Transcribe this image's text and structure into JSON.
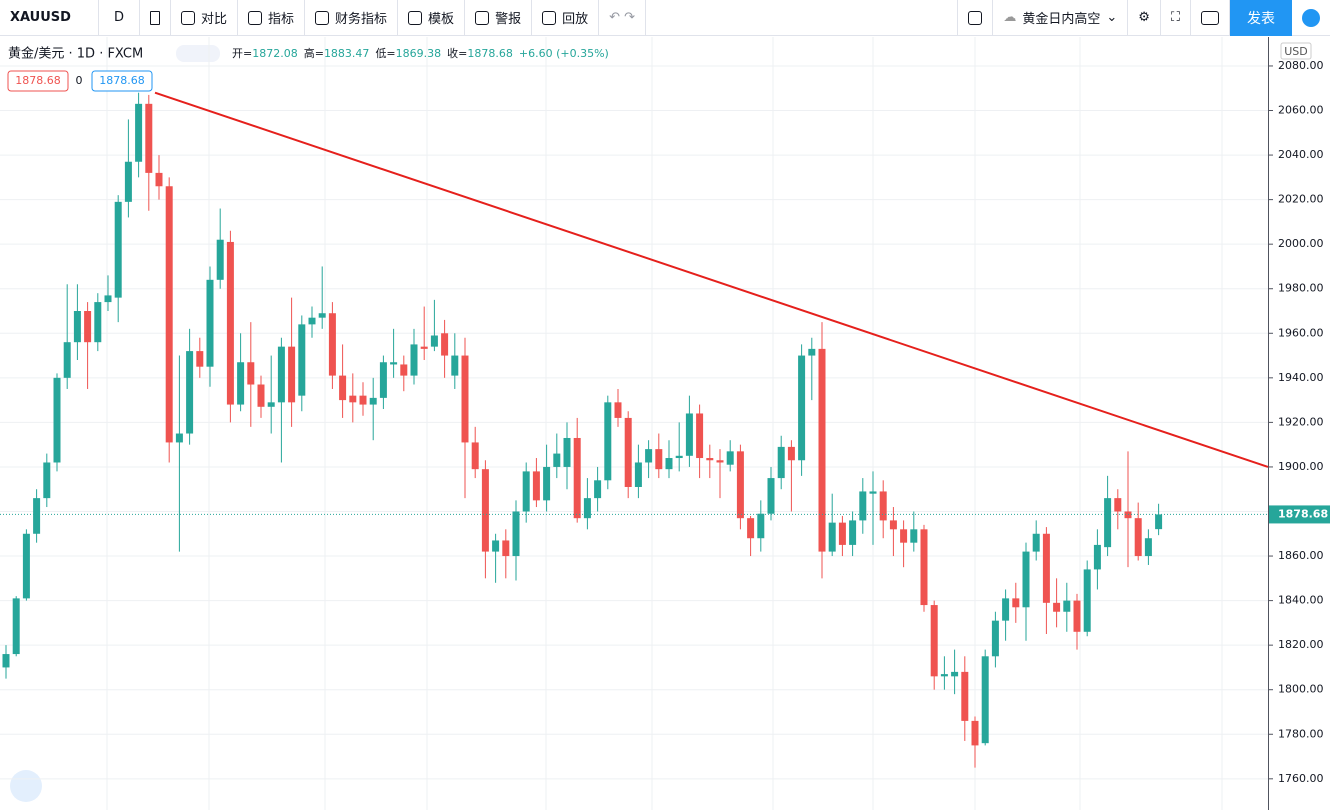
{
  "toolbar": {
    "symbol": "XAUUSD",
    "interval": "D",
    "items": [
      "对比",
      "指标",
      "财务指标",
      "模板",
      "警报",
      "回放"
    ],
    "layout_name": "黄金日内高空",
    "publish": "发表"
  },
  "chart_data": {
    "type": "candlestick",
    "legend": {
      "title": "黄金/美元 · 1D · FXCM",
      "ohlc": [
        {
          "label": "开=",
          "value": "1872.08"
        },
        {
          "label": "高=",
          "value": "1883.47"
        },
        {
          "label": "低=",
          "value": "1869.38"
        },
        {
          "label": "收=",
          "value": "1878.68"
        }
      ],
      "change": "+6.60 (+0.35%)",
      "badges": [
        "1878.68",
        "0",
        "1878.68"
      ]
    },
    "currency": "USD",
    "up_color": "#26a69a",
    "down_color": "#ef5350",
    "open": [
      1810,
      1816,
      1841,
      1870,
      1886,
      1902,
      1940,
      1956,
      1970,
      1956,
      1974,
      1976,
      2019,
      2037,
      2063,
      2032,
      2026,
      1911,
      1915,
      1952,
      1945,
      1984,
      2001,
      1928,
      1947,
      1937,
      1927,
      1929,
      1954,
      1932,
      1964,
      1967,
      1969,
      1941,
      1932,
      1932,
      1928,
      1931,
      1946,
      1946,
      1941,
      1954,
      1954,
      1960,
      1941,
      1950,
      1911,
      1899,
      1862,
      1867,
      1860,
      1880,
      1898,
      1885,
      1900,
      1900,
      1913,
      1877,
      1886,
      1894,
      1929,
      1922,
      1891,
      1902,
      1908,
      1899,
      1904,
      1905,
      1924,
      1904,
      1903,
      1901,
      1907,
      1877,
      1868,
      1879,
      1895,
      1909,
      1903,
      1950,
      1953,
      1862,
      1875,
      1865,
      1876,
      1888,
      1889,
      1876,
      1872,
      1866,
      1872,
      1838,
      1806,
      1806,
      1808,
      1786,
      1776,
      1815,
      1831,
      1841,
      1837,
      1862,
      1870,
      1839,
      1835,
      1840,
      1826,
      1854,
      1864,
      1886,
      1880,
      1877,
      1860,
      1872.08
    ],
    "high": [
      1820,
      1842,
      1872,
      1890,
      1906,
      1942,
      1982,
      1982,
      1974,
      1978,
      1986,
      2022,
      2056,
      2068,
      2067,
      2040,
      2030,
      1950,
      1962,
      1958,
      1990,
      2016,
      2006,
      1960,
      1965,
      1941,
      1950,
      1958,
      1976,
      1968,
      1972,
      1990,
      1974,
      1955,
      1942,
      1938,
      1940,
      1950,
      1962,
      1950,
      1962,
      1972,
      1975,
      1966,
      1960,
      1958,
      1918,
      1903,
      1870,
      1872,
      1885,
      1902,
      1904,
      1910,
      1915,
      1920,
      1922,
      1895,
      1900,
      1932,
      1935,
      1925,
      1910,
      1912,
      1915,
      1912,
      1920,
      1932,
      1928,
      1910,
      1908,
      1912,
      1910,
      1878,
      1885,
      1900,
      1914,
      1912,
      1955,
      1958,
      1965,
      1888,
      1878,
      1880,
      1895,
      1898,
      1894,
      1882,
      1876,
      1880,
      1874,
      1840,
      1815,
      1818,
      1815,
      1788,
      1818,
      1835,
      1845,
      1848,
      1866,
      1876,
      1873,
      1850,
      1848,
      1843,
      1858,
      1872,
      1896,
      1890,
      1907,
      1884,
      1872,
      1883.47
    ],
    "low": [
      1805,
      1815,
      1840,
      1866,
      1882,
      1898,
      1935,
      1948,
      1935,
      1952,
      1970,
      1965,
      2012,
      2030,
      2015,
      2020,
      1902,
      1862,
      1910,
      1940,
      1936,
      1980,
      1920,
      1925,
      1918,
      1922,
      1915,
      1902,
      1918,
      1925,
      1958,
      1962,
      1935,
      1922,
      1920,
      1923,
      1912,
      1926,
      1940,
      1934,
      1937,
      1948,
      1952,
      1940,
      1935,
      1886,
      1895,
      1850,
      1848,
      1850,
      1849,
      1875,
      1882,
      1880,
      1895,
      1890,
      1875,
      1872,
      1880,
      1890,
      1918,
      1886,
      1886,
      1895,
      1895,
      1895,
      1898,
      1900,
      1895,
      1895,
      1886,
      1898,
      1872,
      1860,
      1862,
      1876,
      1890,
      1880,
      1896,
      1930,
      1850,
      1860,
      1860,
      1860,
      1870,
      1865,
      1868,
      1860,
      1855,
      1862,
      1835,
      1800,
      1800,
      1798,
      1777,
      1765,
      1775,
      1810,
      1822,
      1830,
      1822,
      1858,
      1825,
      1828,
      1826,
      1818,
      1824,
      1845,
      1860,
      1872,
      1855,
      1858,
      1856,
      1869.38
    ],
    "close": [
      1816,
      1841,
      1870,
      1886,
      1902,
      1940,
      1956,
      1970,
      1956,
      1974,
      1977,
      2019,
      2037,
      2063,
      2032,
      2026,
      1911,
      1915,
      1952,
      1945,
      1984,
      2002,
      1928,
      1947,
      1937,
      1927,
      1929,
      1954,
      1929,
      1964,
      1967,
      1969,
      1941,
      1930,
      1929,
      1928,
      1931,
      1947,
      1947,
      1941,
      1955,
      1953,
      1959,
      1950,
      1950,
      1911,
      1899,
      1862,
      1867,
      1860,
      1880,
      1898,
      1885,
      1900,
      1906,
      1913,
      1877,
      1886,
      1894,
      1929,
      1922,
      1891,
      1902,
      1908,
      1899,
      1904,
      1905,
      1924,
      1904,
      1903,
      1902,
      1907,
      1877,
      1868,
      1879,
      1895,
      1909,
      1903,
      1950,
      1953,
      1862,
      1875,
      1865,
      1876,
      1889,
      1889,
      1876,
      1872,
      1866,
      1872,
      1838,
      1806,
      1807,
      1808,
      1786,
      1775,
      1815,
      1831,
      1841,
      1837,
      1862,
      1870,
      1839,
      1835,
      1840,
      1826,
      1854,
      1865,
      1886,
      1880,
      1877,
      1860,
      1868,
      1878.68
    ],
    "ylim": [
      1746,
      2093
    ],
    "yticks": [
      {
        "value": 1760,
        "label": "1760.00"
      },
      {
        "value": 1780,
        "label": "1780.00"
      },
      {
        "value": 1800,
        "label": "1800.00"
      },
      {
        "value": 1820,
        "label": "1820.00"
      },
      {
        "value": 1840,
        "label": "1840.00"
      },
      {
        "value": 1860,
        "label": "1860.00"
      },
      {
        "value": 1880,
        "label": "1880.00"
      },
      {
        "value": 1900,
        "label": "1900.00"
      },
      {
        "value": 1920,
        "label": "1920.00"
      },
      {
        "value": 1940,
        "label": "1940.00"
      },
      {
        "value": 1960,
        "label": "1960.00"
      },
      {
        "value": 1980,
        "label": "1980.00"
      },
      {
        "value": 2000,
        "label": "2000.00"
      },
      {
        "value": 2020,
        "label": "2020.00"
      },
      {
        "value": 2040,
        "label": "2040.00"
      },
      {
        "value": 2060,
        "label": "2060.00"
      },
      {
        "value": 2080,
        "label": "2080.00"
      }
    ],
    "last_price": {
      "value": 1878.68,
      "label": "1878.68"
    },
    "trendline": {
      "color": "#e5201c",
      "values": [
        2068,
        1900
      ]
    },
    "grid": true
  }
}
